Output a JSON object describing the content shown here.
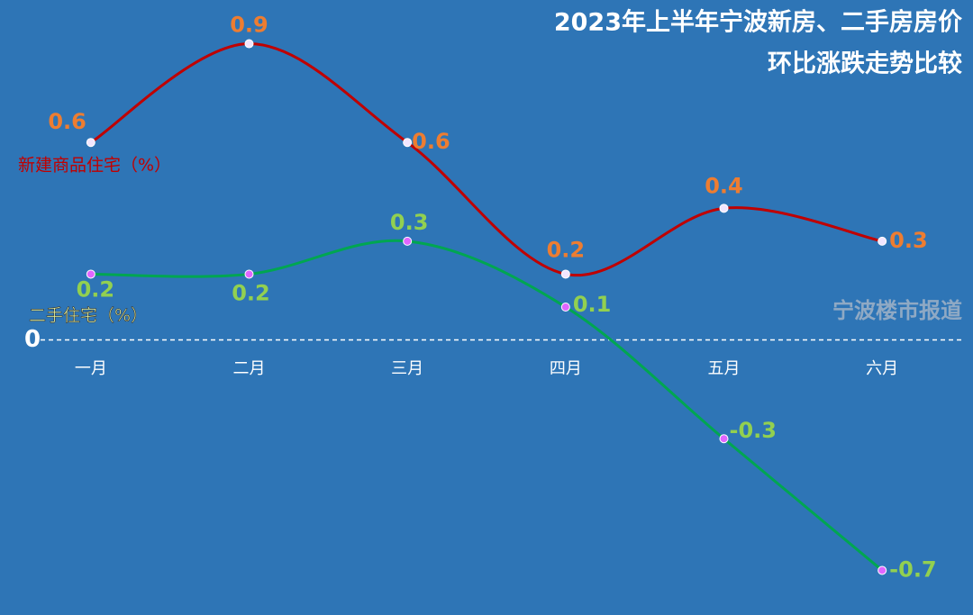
{
  "chart_data": {
    "type": "line",
    "title": "2023年上半年宁波新房、二手房房价",
    "subtitle": "环比涨跌走势比较",
    "watermark": "宁波楼市报道",
    "categories": [
      "一月",
      "二月",
      "三月",
      "四月",
      "五月",
      "六月"
    ],
    "series": [
      {
        "name": "新建商品住宅（%）",
        "color": "#c00000",
        "values": [
          0.6,
          0.9,
          0.6,
          0.2,
          0.4,
          0.3
        ]
      },
      {
        "name": "二手住宅（%）",
        "color": "#00a651",
        "values": [
          0.2,
          0.2,
          0.3,
          0.1,
          -0.3,
          -0.7
        ]
      }
    ],
    "ylim": [
      -0.8,
      1.0
    ],
    "yticks": [
      0
    ]
  }
}
